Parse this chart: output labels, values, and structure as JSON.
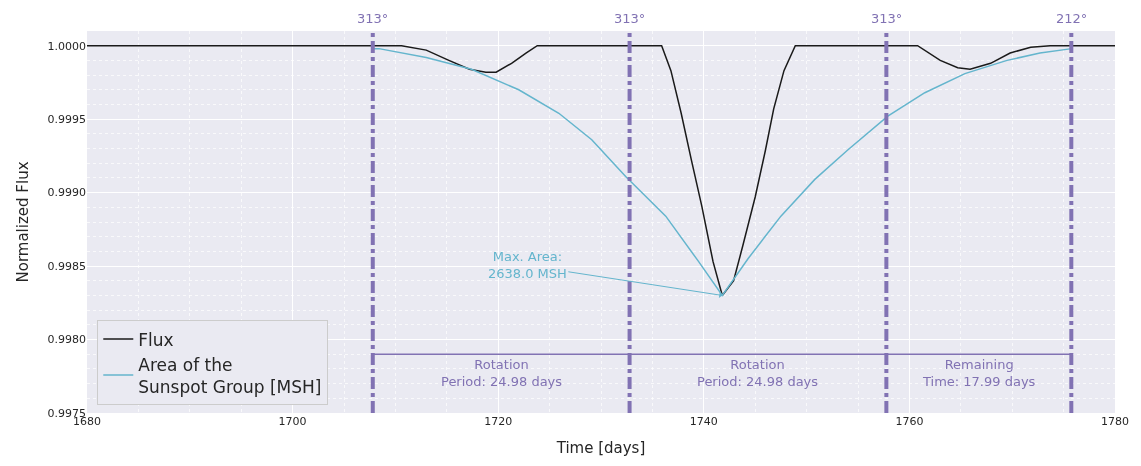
{
  "chart_data": {
    "type": "line",
    "xlabel": "Time [days]",
    "ylabel": "Normalized Flux",
    "xlim": [
      1680,
      1780
    ],
    "xticks": [
      1680,
      1700,
      1720,
      1740,
      1760,
      1780
    ],
    "ylim": [
      0.9975,
      1.0001
    ],
    "yticks": [
      0.9975,
      {
        "value": 0.998,
        "label": "0.9980"
      },
      0.9985,
      {
        "value": 0.999,
        "label": "0.9990"
      },
      0.9995,
      {
        "value": 1,
        "label": "1.0000"
      }
    ],
    "grid": true,
    "legend": "bottom left",
    "line_style": "solid",
    "marker": "none",
    "series": [
      {
        "name": "Flux",
        "color": "#1a1a1a",
        "x": [
          1680,
          1710.6,
          1713,
          1715.2,
          1717.2,
          1718.8,
          1719.8,
          1721.3,
          1722.7,
          1723.8,
          1735.9,
          1736.8,
          1737.8,
          1738.8,
          1739.8,
          1740.9,
          1741.8,
          1742.9,
          1743.8,
          1745,
          1746,
          1746.8,
          1747.8,
          1748.9,
          1760.8,
          1763,
          1764.7,
          1765.9,
          1767.9,
          1769.8,
          1771.8,
          1773.7,
          1780
        ],
        "values": [
          1,
          1,
          0.99997,
          0.9999,
          0.99984,
          0.99982,
          0.99982,
          0.99988,
          0.99995,
          1,
          1,
          0.99983,
          0.99954,
          0.99922,
          0.99891,
          0.99853,
          0.9983,
          0.9984,
          0.99864,
          0.99897,
          0.99929,
          0.99957,
          0.99983,
          1,
          1,
          0.9999,
          0.99985,
          0.99984,
          0.99988,
          0.99995,
          0.99999,
          1,
          1
        ]
      },
      {
        "name": "Area of the\nSunspot Group [MSH]",
        "color": "#64b5cd",
        "x": [
          1707.8,
          1708.4,
          1713,
          1717.4,
          1722,
          1725.9,
          1729.1,
          1732.4,
          1736.3,
          1739.5,
          1741.8,
          1744.3,
          1747.5,
          1750.8,
          1754,
          1757.9,
          1761.5,
          1765.4,
          1769.5,
          1772.7,
          1775.8
        ],
        "values": [
          0.99998,
          0.99998,
          0.99992,
          0.99984,
          0.9997,
          0.99954,
          0.99936,
          0.99911,
          0.99884,
          0.99853,
          0.9983,
          0.99855,
          0.99884,
          0.99909,
          0.99929,
          0.99952,
          0.99968,
          0.99981,
          0.9999,
          0.99995,
          0.99998
        ]
      },
      {
        "color": "#8172b3",
        "x": [
          1707.8,
          1775.75
        ],
        "values": [
          0.9979,
          0.9979
        ]
      }
    ],
    "ref_lines": [
      {
        "axis": "x",
        "value": 1707.8,
        "color": "#8172b3",
        "line_style": "dashdot"
      },
      {
        "axis": "x",
        "value": 1732.78,
        "color": "#8172b3",
        "line_style": "dashdot"
      },
      {
        "axis": "x",
        "value": 1757.76,
        "color": "#8172b3",
        "line_style": "dashdot"
      },
      {
        "axis": "x",
        "value": 1775.75,
        "color": "#8172b3",
        "line_style": "dashdot"
      }
    ],
    "annotations": [
      {
        "text": "Max. Area:\n2638.0 MSH",
        "x": 1741.8,
        "y": 0.9983
      },
      "313°",
      "313°",
      "313°",
      "212°",
      {
        "text": "Rotation\nPeriod: 24.98 days",
        "x": 1720.29,
        "y": 0.9979
      },
      {
        "text": "Rotation\nPeriod: 24.98 days",
        "x": 1745.27,
        "y": 0.9979
      },
      {
        "text": "Remaining\nTime: 17.99 days",
        "x": 1766.76,
        "y": 0.9979
      }
    ]
  }
}
